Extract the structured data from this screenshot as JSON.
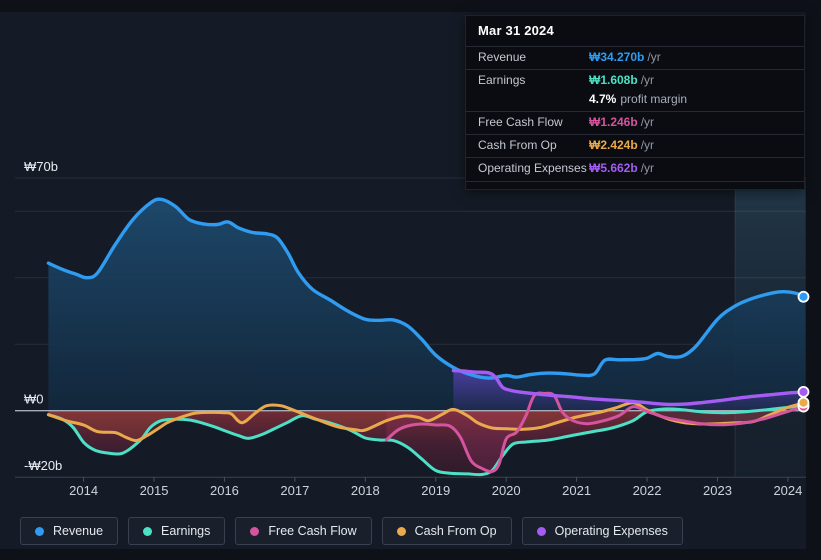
{
  "tooltip": {
    "date": "Mar 31 2024",
    "rows": {
      "revenue": {
        "label": "Revenue",
        "value": "₩34.270b",
        "suffix": "/yr"
      },
      "earnings": {
        "label": "Earnings",
        "value": "₩1.608b",
        "suffix": "/yr",
        "margin_value": "4.7%",
        "margin_label": "profit margin"
      },
      "fcf": {
        "label": "Free Cash Flow",
        "value": "₩1.246b",
        "suffix": "/yr"
      },
      "cashop": {
        "label": "Cash From Op",
        "value": "₩2.424b",
        "suffix": "/yr"
      },
      "opex": {
        "label": "Operating Expenses",
        "value": "₩5.662b",
        "suffix": "/yr"
      }
    }
  },
  "colors": {
    "revenue": "#2f9cf1",
    "earnings": "#4ce0c6",
    "fcf": "#d4549e",
    "cashop": "#e9a94c",
    "opex": "#a55cf3",
    "tooltip_margin": "#ffffff"
  },
  "legend": {
    "items": [
      {
        "id": "revenue",
        "label": "Revenue"
      },
      {
        "id": "earnings",
        "label": "Earnings"
      },
      {
        "id": "fcf",
        "label": "Free Cash Flow"
      },
      {
        "id": "cashop",
        "label": "Cash From Op"
      },
      {
        "id": "opex",
        "label": "Operating Expenses"
      }
    ]
  },
  "y_axis": {
    "labels": [
      {
        "text": "₩70b",
        "value": 70
      },
      {
        "text": "₩0",
        "value": 0
      },
      {
        "text": "-₩20b",
        "value": -20
      }
    ]
  },
  "x_axis": {
    "ticks": [
      2014,
      2015,
      2016,
      2017,
      2018,
      2019,
      2020,
      2021,
      2022,
      2023,
      2024
    ]
  },
  "chart_data": {
    "type": "area",
    "x_unit": "year",
    "x_range": [
      2013.5,
      2024.25
    ],
    "y_unit": "billion KRW",
    "y_range": [
      -20,
      70
    ],
    "gridline_values": [
      70,
      60,
      40,
      20
    ],
    "zero_line": 0,
    "highlight_band_x": [
      2023.25,
      2024.25
    ],
    "legend_position": "bottom",
    "series": [
      {
        "id": "revenue",
        "name": "Revenue",
        "points": [
          [
            2013.5,
            44.4
          ],
          [
            2013.7,
            42.5
          ],
          [
            2013.9,
            41
          ],
          [
            2014.05,
            40
          ],
          [
            2014.2,
            41.5
          ],
          [
            2014.45,
            50
          ],
          [
            2014.7,
            57.5
          ],
          [
            2014.95,
            62.5
          ],
          [
            2015.1,
            63.6
          ],
          [
            2015.3,
            61.5
          ],
          [
            2015.5,
            57.5
          ],
          [
            2015.7,
            56.2
          ],
          [
            2015.9,
            56
          ],
          [
            2016.05,
            56.8
          ],
          [
            2016.2,
            55
          ],
          [
            2016.4,
            53.6
          ],
          [
            2016.6,
            53.2
          ],
          [
            2016.75,
            52
          ],
          [
            2016.9,
            47.5
          ],
          [
            2017.05,
            41.5
          ],
          [
            2017.25,
            36.5
          ],
          [
            2017.5,
            33.3
          ],
          [
            2017.75,
            30
          ],
          [
            2018,
            27.5
          ],
          [
            2018.2,
            27.2
          ],
          [
            2018.4,
            27.3
          ],
          [
            2018.6,
            25.5
          ],
          [
            2018.8,
            21.5
          ],
          [
            2019,
            16.7
          ],
          [
            2019.25,
            13
          ],
          [
            2019.5,
            10.8
          ],
          [
            2019.75,
            9.8
          ],
          [
            2020,
            10.6
          ],
          [
            2020.15,
            10.1
          ],
          [
            2020.35,
            10.9
          ],
          [
            2020.6,
            11.3
          ],
          [
            2020.85,
            11.1
          ],
          [
            2021.05,
            10.7
          ],
          [
            2021.25,
            11
          ],
          [
            2021.4,
            15.2
          ],
          [
            2021.6,
            15.3
          ],
          [
            2021.85,
            15.4
          ],
          [
            2022,
            15.8
          ],
          [
            2022.15,
            17.2
          ],
          [
            2022.3,
            16.3
          ],
          [
            2022.5,
            16.4
          ],
          [
            2022.7,
            19.5
          ],
          [
            2023,
            27.5
          ],
          [
            2023.25,
            31.5
          ],
          [
            2023.5,
            33.8
          ],
          [
            2023.8,
            35.5
          ],
          [
            2023.95,
            35.8
          ],
          [
            2024.1,
            35.4
          ],
          [
            2024.25,
            34.27
          ]
        ]
      },
      {
        "id": "earnings",
        "name": "Earnings",
        "points": [
          [
            2013.5,
            -1.2
          ],
          [
            2013.7,
            -2.6
          ],
          [
            2013.85,
            -5
          ],
          [
            2014,
            -9.5
          ],
          [
            2014.15,
            -11.8
          ],
          [
            2014.3,
            -12.6
          ],
          [
            2014.55,
            -12.8
          ],
          [
            2014.8,
            -9
          ],
          [
            2014.95,
            -5
          ],
          [
            2015.1,
            -3
          ],
          [
            2015.3,
            -2.6
          ],
          [
            2015.5,
            -2.8
          ],
          [
            2015.65,
            -3.5
          ],
          [
            2015.85,
            -4.8
          ],
          [
            2016,
            -6
          ],
          [
            2016.2,
            -7.5
          ],
          [
            2016.35,
            -8.3
          ],
          [
            2016.55,
            -7
          ],
          [
            2016.7,
            -5.5
          ],
          [
            2016.9,
            -3.5
          ],
          [
            2017.1,
            -1.5
          ],
          [
            2017.3,
            -2.6
          ],
          [
            2017.55,
            -4
          ],
          [
            2017.8,
            -6
          ],
          [
            2018,
            -8.2
          ],
          [
            2018.2,
            -8.8
          ],
          [
            2018.4,
            -9
          ],
          [
            2018.6,
            -11
          ],
          [
            2018.8,
            -14.5
          ],
          [
            2019,
            -18
          ],
          [
            2019.2,
            -18.8
          ],
          [
            2019.45,
            -19
          ],
          [
            2019.65,
            -19.2
          ],
          [
            2019.8,
            -18
          ],
          [
            2019.95,
            -13.5
          ],
          [
            2020.1,
            -10
          ],
          [
            2020.3,
            -9.4
          ],
          [
            2020.6,
            -8.8
          ],
          [
            2020.9,
            -7.6
          ],
          [
            2021.2,
            -6.4
          ],
          [
            2021.5,
            -5.2
          ],
          [
            2021.8,
            -3
          ],
          [
            2022,
            -0.3
          ],
          [
            2022.25,
            0.5
          ],
          [
            2022.5,
            0.3
          ],
          [
            2022.8,
            -0.4
          ],
          [
            2023.1,
            -0.6
          ],
          [
            2023.4,
            -0.3
          ],
          [
            2023.7,
            0.3
          ],
          [
            2024,
            1
          ],
          [
            2024.25,
            1.608
          ]
        ]
      },
      {
        "id": "cashop",
        "name": "Cash From Op",
        "points": [
          [
            2013.5,
            -1.2
          ],
          [
            2013.75,
            -3
          ],
          [
            2014,
            -4.3
          ],
          [
            2014.2,
            -6.3
          ],
          [
            2014.45,
            -6.6
          ],
          [
            2014.6,
            -8
          ],
          [
            2014.75,
            -9
          ],
          [
            2014.9,
            -7.5
          ],
          [
            2015.05,
            -5.5
          ],
          [
            2015.2,
            -3.5
          ],
          [
            2015.45,
            -1.5
          ],
          [
            2015.6,
            -0.7
          ],
          [
            2015.8,
            -0.5
          ],
          [
            2016,
            -0.6
          ],
          [
            2016.1,
            -1
          ],
          [
            2016.25,
            -3.6
          ],
          [
            2016.45,
            -0.5
          ],
          [
            2016.6,
            1.5
          ],
          [
            2016.8,
            1.5
          ],
          [
            2017,
            0
          ],
          [
            2017.3,
            -2.5
          ],
          [
            2017.6,
            -4.8
          ],
          [
            2017.85,
            -5.7
          ],
          [
            2018,
            -5.8
          ],
          [
            2018.3,
            -3
          ],
          [
            2018.55,
            -1.6
          ],
          [
            2018.75,
            -2
          ],
          [
            2018.9,
            -3
          ],
          [
            2019.1,
            -1
          ],
          [
            2019.25,
            0.4
          ],
          [
            2019.45,
            -1.5
          ],
          [
            2019.6,
            -3.7
          ],
          [
            2019.8,
            -5.2
          ],
          [
            2020,
            -5.4
          ],
          [
            2020.25,
            -5.6
          ],
          [
            2020.5,
            -5
          ],
          [
            2020.75,
            -3.4
          ],
          [
            2021,
            -1.9
          ],
          [
            2021.3,
            -0.6
          ],
          [
            2021.55,
            0.8
          ],
          [
            2021.8,
            2.4
          ],
          [
            2022,
            0.2
          ],
          [
            2022.15,
            -1.3
          ],
          [
            2022.35,
            -2.8
          ],
          [
            2022.6,
            -3.8
          ],
          [
            2022.9,
            -4
          ],
          [
            2023.2,
            -3.7
          ],
          [
            2023.5,
            -3.3
          ],
          [
            2023.75,
            -1.2
          ],
          [
            2024,
            1
          ],
          [
            2024.25,
            2.424
          ]
        ]
      },
      {
        "id": "fcf",
        "name": "Free Cash Flow",
        "points": [
          [
            2018.3,
            -8.8
          ],
          [
            2018.45,
            -6
          ],
          [
            2018.6,
            -4.6
          ],
          [
            2018.8,
            -4
          ],
          [
            2019,
            -4.3
          ],
          [
            2019.2,
            -4.6
          ],
          [
            2019.35,
            -8
          ],
          [
            2019.5,
            -15
          ],
          [
            2019.65,
            -17.3
          ],
          [
            2019.8,
            -18.3
          ],
          [
            2019.9,
            -16
          ],
          [
            2020,
            -8.5
          ],
          [
            2020.15,
            -6.4
          ],
          [
            2020.28,
            -1.5
          ],
          [
            2020.4,
            4.6
          ],
          [
            2020.55,
            5.2
          ],
          [
            2020.68,
            4.6
          ],
          [
            2020.8,
            -0.5
          ],
          [
            2020.95,
            -3
          ],
          [
            2021.15,
            -3.9
          ],
          [
            2021.35,
            -3.2
          ],
          [
            2021.6,
            -1.5
          ],
          [
            2021.8,
            1.2
          ],
          [
            2022,
            -0.2
          ],
          [
            2022.25,
            -2
          ],
          [
            2022.5,
            -3
          ],
          [
            2022.8,
            -4
          ],
          [
            2023.1,
            -4.2
          ],
          [
            2023.4,
            -3.6
          ],
          [
            2023.7,
            -2.2
          ],
          [
            2024,
            -0.2
          ],
          [
            2024.25,
            1.246
          ]
        ]
      },
      {
        "id": "opex",
        "name": "Operating Expenses",
        "points": [
          [
            2019.25,
            12.1
          ],
          [
            2019.4,
            11.9
          ],
          [
            2019.55,
            11.6
          ],
          [
            2019.75,
            11.4
          ],
          [
            2019.85,
            10
          ],
          [
            2019.95,
            7
          ],
          [
            2020.05,
            6.2
          ],
          [
            2020.2,
            5.6
          ],
          [
            2020.4,
            5.1
          ],
          [
            2020.65,
            4.6
          ],
          [
            2020.9,
            4.2
          ],
          [
            2021.15,
            3.7
          ],
          [
            2021.4,
            3.3
          ],
          [
            2021.65,
            3
          ],
          [
            2021.9,
            2.6
          ],
          [
            2022.1,
            2.2
          ],
          [
            2022.3,
            1.9
          ],
          [
            2022.55,
            2
          ],
          [
            2022.8,
            2.5
          ],
          [
            2023.05,
            3.1
          ],
          [
            2023.3,
            3.8
          ],
          [
            2023.55,
            4.4
          ],
          [
            2023.8,
            4.9
          ],
          [
            2024.05,
            5.4
          ],
          [
            2024.25,
            5.662
          ]
        ]
      }
    ]
  }
}
